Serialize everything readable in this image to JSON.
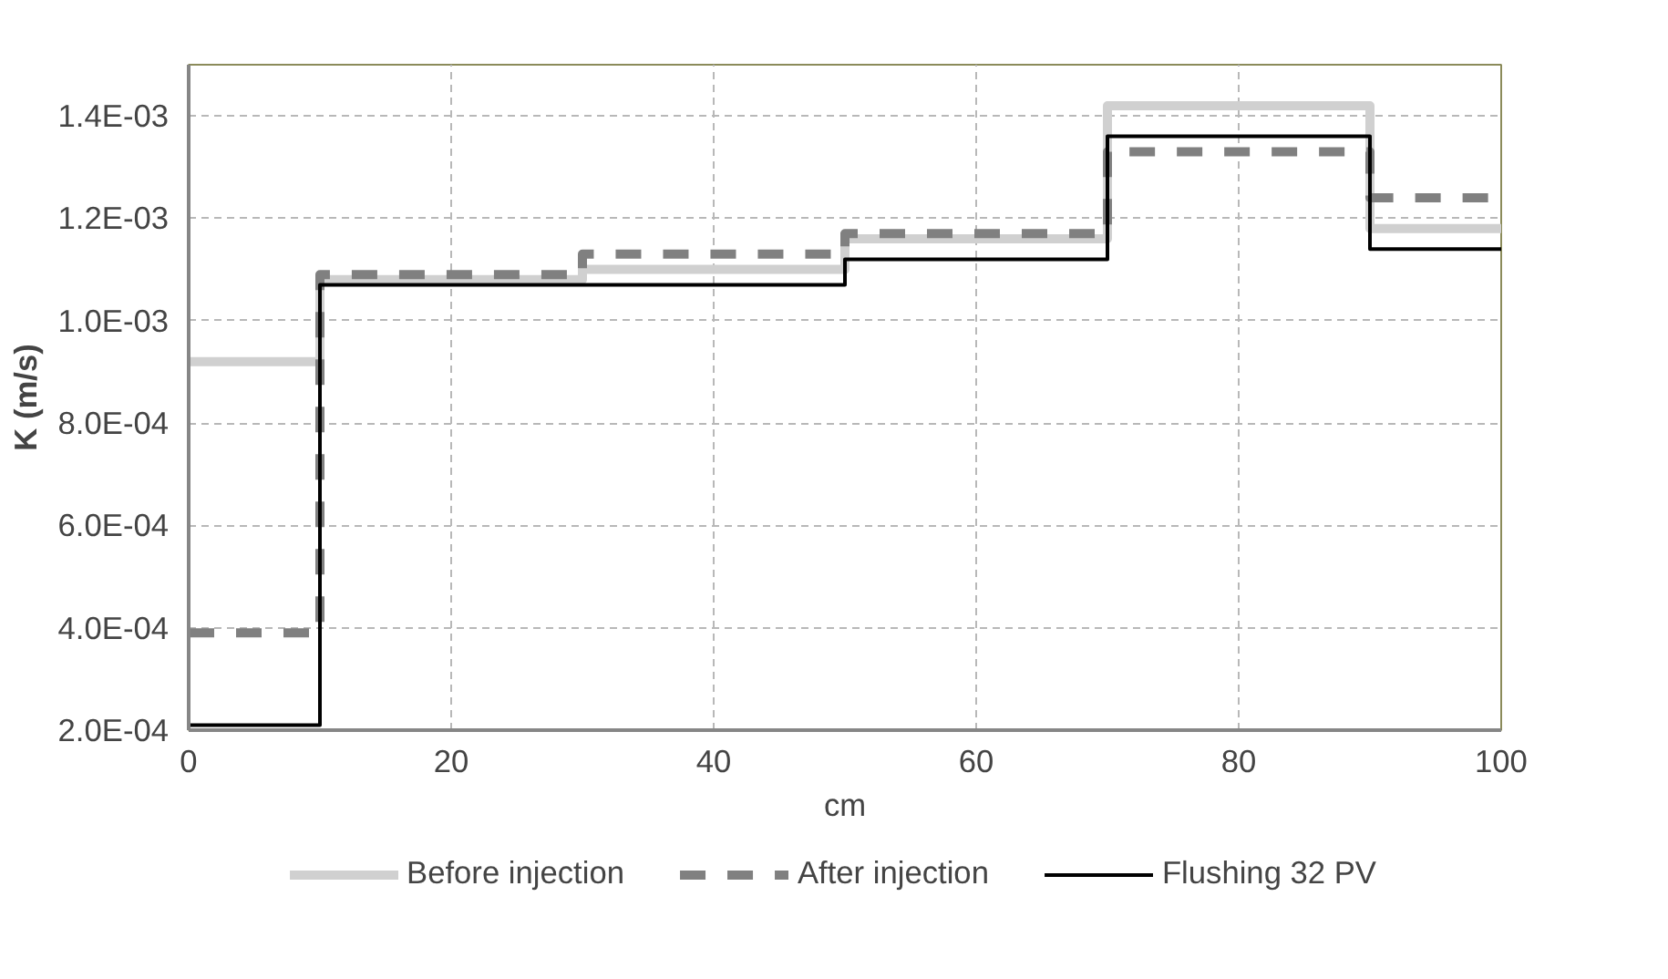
{
  "chart_data": {
    "type": "step",
    "xlabel": "cm",
    "ylabel": "K (m/s)",
    "x": [
      0,
      10,
      30,
      50,
      70,
      90,
      100
    ],
    "series": [
      {
        "name": "Before injection",
        "color": "#d0d0d0",
        "line_style": "solid",
        "values": [
          0.00092,
          0.00108,
          0.0011,
          0.00116,
          0.00142,
          0.00118,
          0.00118
        ]
      },
      {
        "name": "After injection",
        "color": "#808080",
        "line_style": "dashed",
        "values": [
          0.00039,
          0.00109,
          0.00113,
          0.00117,
          0.00133,
          0.00124,
          0.00124
        ]
      },
      {
        "name": "Flushing 32 PV",
        "color": "#000000",
        "line_style": "solid",
        "values": [
          0.00021,
          0.00107,
          0.00107,
          0.00112,
          0.00136,
          0.00114,
          0.00114
        ]
      }
    ],
    "xlim": [
      0,
      100
    ],
    "xticks": [
      0,
      20,
      40,
      60,
      80,
      100
    ],
    "ylim": [
      0.0002,
      0.0015
    ],
    "yticks": [
      {
        "value": 0.0002,
        "label": "2.0E-04"
      },
      {
        "value": 0.0004,
        "label": "4.0E-04"
      },
      {
        "value": 0.0006,
        "label": "6.0E-04"
      },
      {
        "value": 0.0008,
        "label": "8.0E-04"
      },
      {
        "value": 0.001,
        "label": "1.0E-03"
      },
      {
        "value": 0.0012,
        "label": "1.2E-03"
      },
      {
        "value": 0.0014,
        "label": "1.4E-03"
      }
    ],
    "grid": true,
    "legend": "bottom",
    "marker": "none"
  }
}
